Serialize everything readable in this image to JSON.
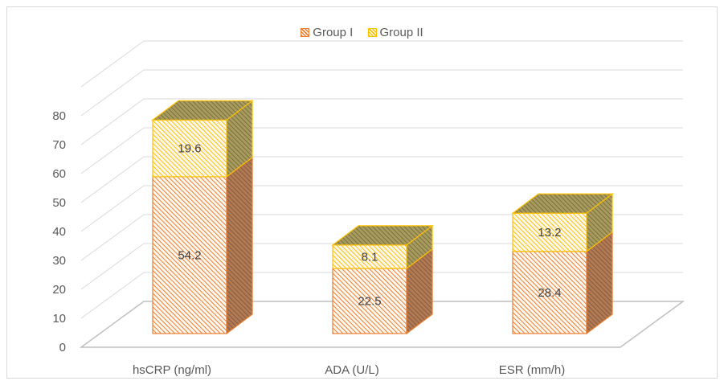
{
  "chart_data": {
    "type": "bar",
    "stacked": true,
    "style": "3d",
    "categories": [
      "hsCRP (ng/ml)",
      "ADA (U/L)",
      "ESR (mm/h)"
    ],
    "series": [
      {
        "name": "Group I",
        "values": [
          54.2,
          22.5,
          28.4
        ],
        "color": "#f4b183",
        "edge": "#ed7d31"
      },
      {
        "name": "Group II",
        "values": [
          19.6,
          8.1,
          13.2
        ],
        "color": "#ffe699",
        "edge": "#ffc000"
      }
    ],
    "yticks": [
      "0",
      "10",
      "20",
      "30",
      "40",
      "50",
      "60",
      "70",
      "80"
    ],
    "ylim": [
      0,
      80
    ],
    "grid": true,
    "legend_position": "top"
  }
}
